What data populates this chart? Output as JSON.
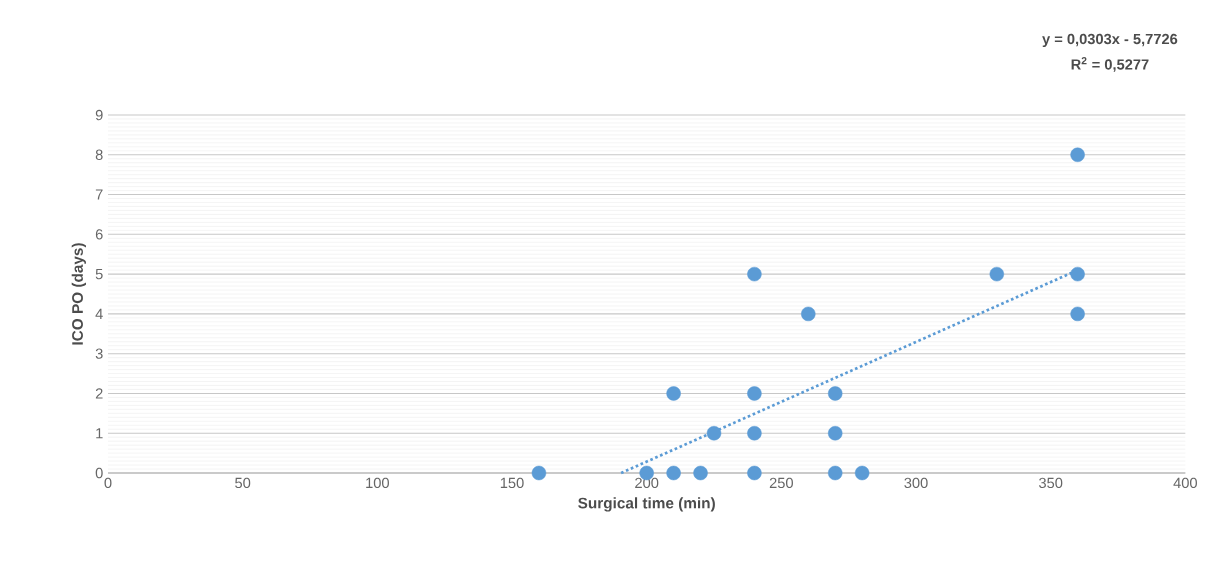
{
  "chart_data": {
    "type": "scatter",
    "xlabel": "Surgical time (min)",
    "ylabel": "ICO PO (days)",
    "xlim": [
      0,
      400
    ],
    "xticks": [
      0,
      50,
      100,
      150,
      200,
      250,
      300,
      350,
      400
    ],
    "ylim": [
      0,
      9
    ],
    "yticks": [
      0,
      1,
      2,
      3,
      4,
      5,
      6,
      7,
      8,
      9
    ],
    "grid": "y",
    "annotations": [
      "y = 0,0303x - 5,7726",
      "R$^{2}$ = 0,5277"
    ],
    "series": [
      {
        "marker": "circle",
        "color": "#5b9bd5",
        "x": [
          160,
          200,
          210,
          220,
          240,
          270,
          280,
          225,
          240,
          270,
          210,
          240,
          270,
          260,
          240,
          330,
          360,
          360,
          360
        ],
        "values": [
          0,
          0,
          0,
          0,
          0,
          0,
          0,
          1,
          1,
          1,
          2,
          2,
          2,
          4,
          5,
          5,
          5,
          4,
          8
        ]
      },
      {
        "type": "line",
        "marker": "none",
        "color": "#5b9bd5",
        "line_style": "dotted",
        "x": [
          190.5,
          360
        ],
        "values": [
          0,
          5.1
        ]
      }
    ]
  }
}
